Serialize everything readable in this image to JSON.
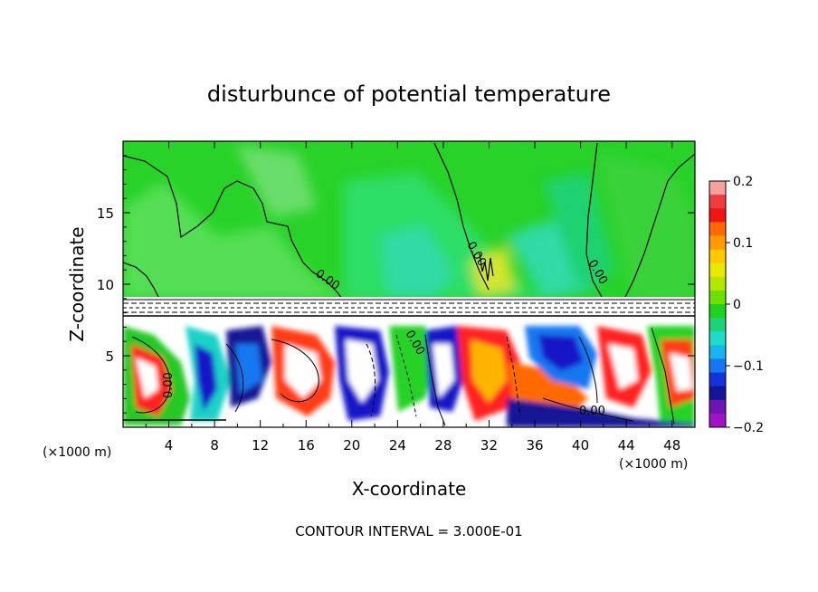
{
  "chart_data": {
    "type": "heatmap",
    "title": "disturbunce of potential temperature",
    "xlabel": "X-coordinate",
    "ylabel": "Z-coordinate",
    "x_unit_left": "(×1000 m)",
    "x_unit_right": "(×1000 m)",
    "xlim": [
      0,
      50
    ],
    "ylim": [
      0,
      20
    ],
    "x_ticks": [
      4,
      8,
      12,
      16,
      20,
      24,
      28,
      32,
      36,
      40,
      44,
      48
    ],
    "y_ticks": [
      5,
      10,
      15
    ],
    "footer": "CONTOUR INTERVAL = 3.000E-01",
    "contour_label": "0.00",
    "colorbar": {
      "range": [
        -0.2,
        0.2
      ],
      "tick_labels": [
        "0.2",
        "0.1",
        "0",
        "−0.1",
        "−0.2"
      ],
      "tick_values": [
        0.2,
        0.1,
        0,
        -0.1,
        -0.2
      ],
      "colors": [
        "#f7a0a0",
        "#f03c3c",
        "#f01414",
        "#ff6a00",
        "#ff9a00",
        "#ffc800",
        "#e8e800",
        "#b4e600",
        "#6ee000",
        "#1ed21e",
        "#1ed27a",
        "#1edcc8",
        "#18b4f0",
        "#1478f0",
        "#1432dc",
        "#141496",
        "#6e14b4",
        "#a014c8"
      ]
    },
    "upper_region_value": 0.0,
    "lower_region_range": [
      -0.2,
      0.2
    ]
  }
}
